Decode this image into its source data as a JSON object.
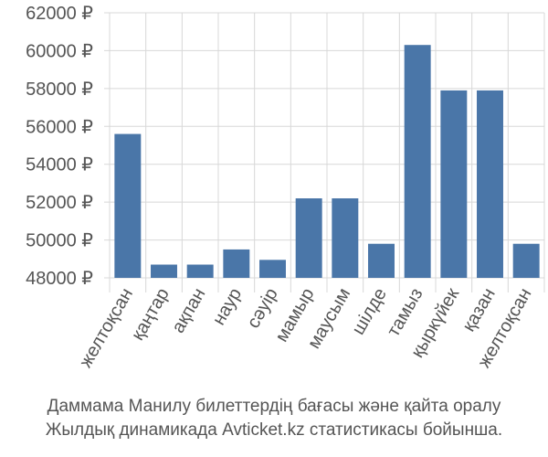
{
  "chart_data": {
    "type": "bar",
    "categories": [
      "желтоқсан",
      "қаңтар",
      "ақпан",
      "наур",
      "сәуір",
      "мамыр",
      "маусым",
      "шілде",
      "тамыз",
      "қыркүйек",
      "қазан",
      "желтоқсан"
    ],
    "values": [
      55600,
      48700,
      48700,
      49500,
      48950,
      52200,
      52200,
      49800,
      60300,
      57900,
      57900,
      49800
    ],
    "ylim": [
      48000,
      62000
    ],
    "yticks": [
      48000,
      50000,
      52000,
      54000,
      56000,
      58000,
      60000,
      62000
    ],
    "ytick_labels": [
      "48000 ₽",
      "50000 ₽",
      "52000 ₽",
      "54000 ₽",
      "56000 ₽",
      "58000 ₽",
      "60000 ₽",
      "62000 ₽"
    ],
    "grid": true,
    "colors": {
      "bar": "#4a76a8",
      "grid": "#d8d8d8",
      "text": "#555555"
    }
  },
  "caption": {
    "line1": "Даммама Манилу билеттердің бағасы және қайта оралу",
    "line2": "Жылдық динамикада Avticket.kz статистикасы бойынша."
  }
}
